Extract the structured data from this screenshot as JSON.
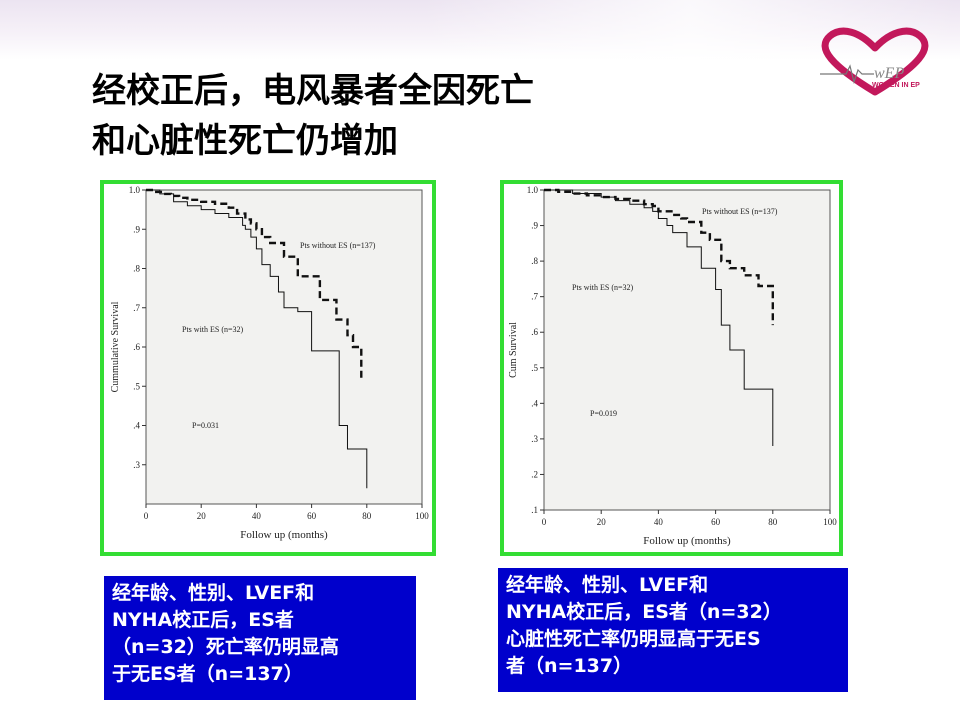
{
  "slide": {
    "title_lines": [
      "经校正后，电风暴者全因死亡",
      "和心脏性死亡仍增加"
    ],
    "logo_text": "WOMEN IN EP",
    "logo_color": "#c2185b",
    "chart_border_color": "#33dd33",
    "caption_bg_color": "#0000cc",
    "captions": [
      [
        "经年龄、性别、LVEF和",
        "NYHA校正后，ES者",
        "（n=32）死亡率仍明显高",
        "于无ES者（n=137）"
      ],
      [
        "经年龄、性别、LVEF和",
        "NYHA校正后，ES者（n=32）",
        "心脏性死亡率仍明显高于无ES",
        "者（n=137）"
      ]
    ]
  },
  "chart_data": [
    {
      "type": "line",
      "step": true,
      "xlabel": "Follow up (months)",
      "ylabel": "Cummulative Survival",
      "xlim": [
        0,
        100
      ],
      "ylim": [
        0.2,
        1.0
      ],
      "xticks": [
        "0",
        "20",
        "40",
        "60",
        "80",
        "100"
      ],
      "yticks": [
        [
          "1.0",
          1.0
        ],
        [
          ".9",
          0.9
        ],
        [
          ".8",
          0.8
        ],
        [
          ".7",
          0.7
        ],
        [
          ".6",
          0.6
        ],
        [
          ".5",
          0.5
        ],
        [
          ".4",
          0.4
        ],
        [
          ".3",
          0.3
        ]
      ],
      "annotations": [
        "P=0.031"
      ],
      "series": [
        {
          "name": "Pts without ES (n=137)",
          "style": "dashed",
          "x": [
            0,
            3,
            6,
            9,
            12,
            15,
            20,
            25,
            30,
            33,
            36,
            38,
            40,
            42,
            45,
            50,
            55,
            58,
            63,
            65,
            69,
            73,
            75,
            78
          ],
          "y": [
            1.0,
            0.995,
            0.99,
            0.985,
            0.98,
            0.975,
            0.97,
            0.965,
            0.955,
            0.94,
            0.925,
            0.915,
            0.9,
            0.88,
            0.865,
            0.83,
            0.78,
            0.78,
            0.72,
            0.72,
            0.67,
            0.63,
            0.6,
            0.52
          ]
        },
        {
          "name": "Pts with ES (n=32)",
          "style": "solid",
          "x": [
            0,
            5,
            10,
            15,
            20,
            25,
            30,
            35,
            36,
            38,
            40,
            42,
            45,
            48,
            50,
            52,
            55,
            60,
            65,
            70,
            73,
            75,
            80
          ],
          "y": [
            1.0,
            0.99,
            0.97,
            0.96,
            0.95,
            0.94,
            0.93,
            0.91,
            0.9,
            0.88,
            0.85,
            0.81,
            0.78,
            0.74,
            0.7,
            0.7,
            0.69,
            0.59,
            0.59,
            0.4,
            0.34,
            0.34,
            0.24
          ]
        }
      ]
    },
    {
      "type": "line",
      "step": true,
      "xlabel": "Follow up (months)",
      "ylabel": "Cum Survival",
      "xlim": [
        0,
        100
      ],
      "ylim": [
        0.1,
        1.0
      ],
      "xticks": [
        "0",
        "20",
        "40",
        "60",
        "80",
        "100"
      ],
      "yticks": [
        [
          "1.0",
          1.0
        ],
        [
          ".9",
          0.9
        ],
        [
          ".8",
          0.8
        ],
        [
          ".7",
          0.7
        ],
        [
          ".6",
          0.6
        ],
        [
          ".5",
          0.5
        ],
        [
          ".4",
          0.4
        ],
        [
          ".3",
          0.3
        ],
        [
          ".2",
          0.2
        ],
        [
          ".1",
          0.1
        ]
      ],
      "annotations": [
        "P=0.019"
      ],
      "series": [
        {
          "name": "Pts without ES (n=137)",
          "style": "dashed",
          "x": [
            0,
            5,
            10,
            15,
            20,
            25,
            30,
            35,
            38,
            40,
            45,
            48,
            50,
            55,
            58,
            62,
            65,
            68,
            70,
            75,
            80
          ],
          "y": [
            1.0,
            0.995,
            0.99,
            0.985,
            0.98,
            0.975,
            0.97,
            0.96,
            0.955,
            0.94,
            0.93,
            0.92,
            0.91,
            0.88,
            0.86,
            0.8,
            0.78,
            0.78,
            0.76,
            0.73,
            0.62
          ]
        },
        {
          "name": "Pts with ES (n=32)",
          "style": "solid",
          "x": [
            0,
            10,
            20,
            25,
            30,
            35,
            38,
            40,
            43,
            45,
            50,
            55,
            60,
            62,
            65,
            68,
            70,
            75,
            80
          ],
          "y": [
            1.0,
            0.99,
            0.98,
            0.97,
            0.96,
            0.95,
            0.94,
            0.92,
            0.9,
            0.88,
            0.84,
            0.78,
            0.72,
            0.62,
            0.55,
            0.55,
            0.44,
            0.44,
            0.28
          ]
        }
      ]
    }
  ]
}
